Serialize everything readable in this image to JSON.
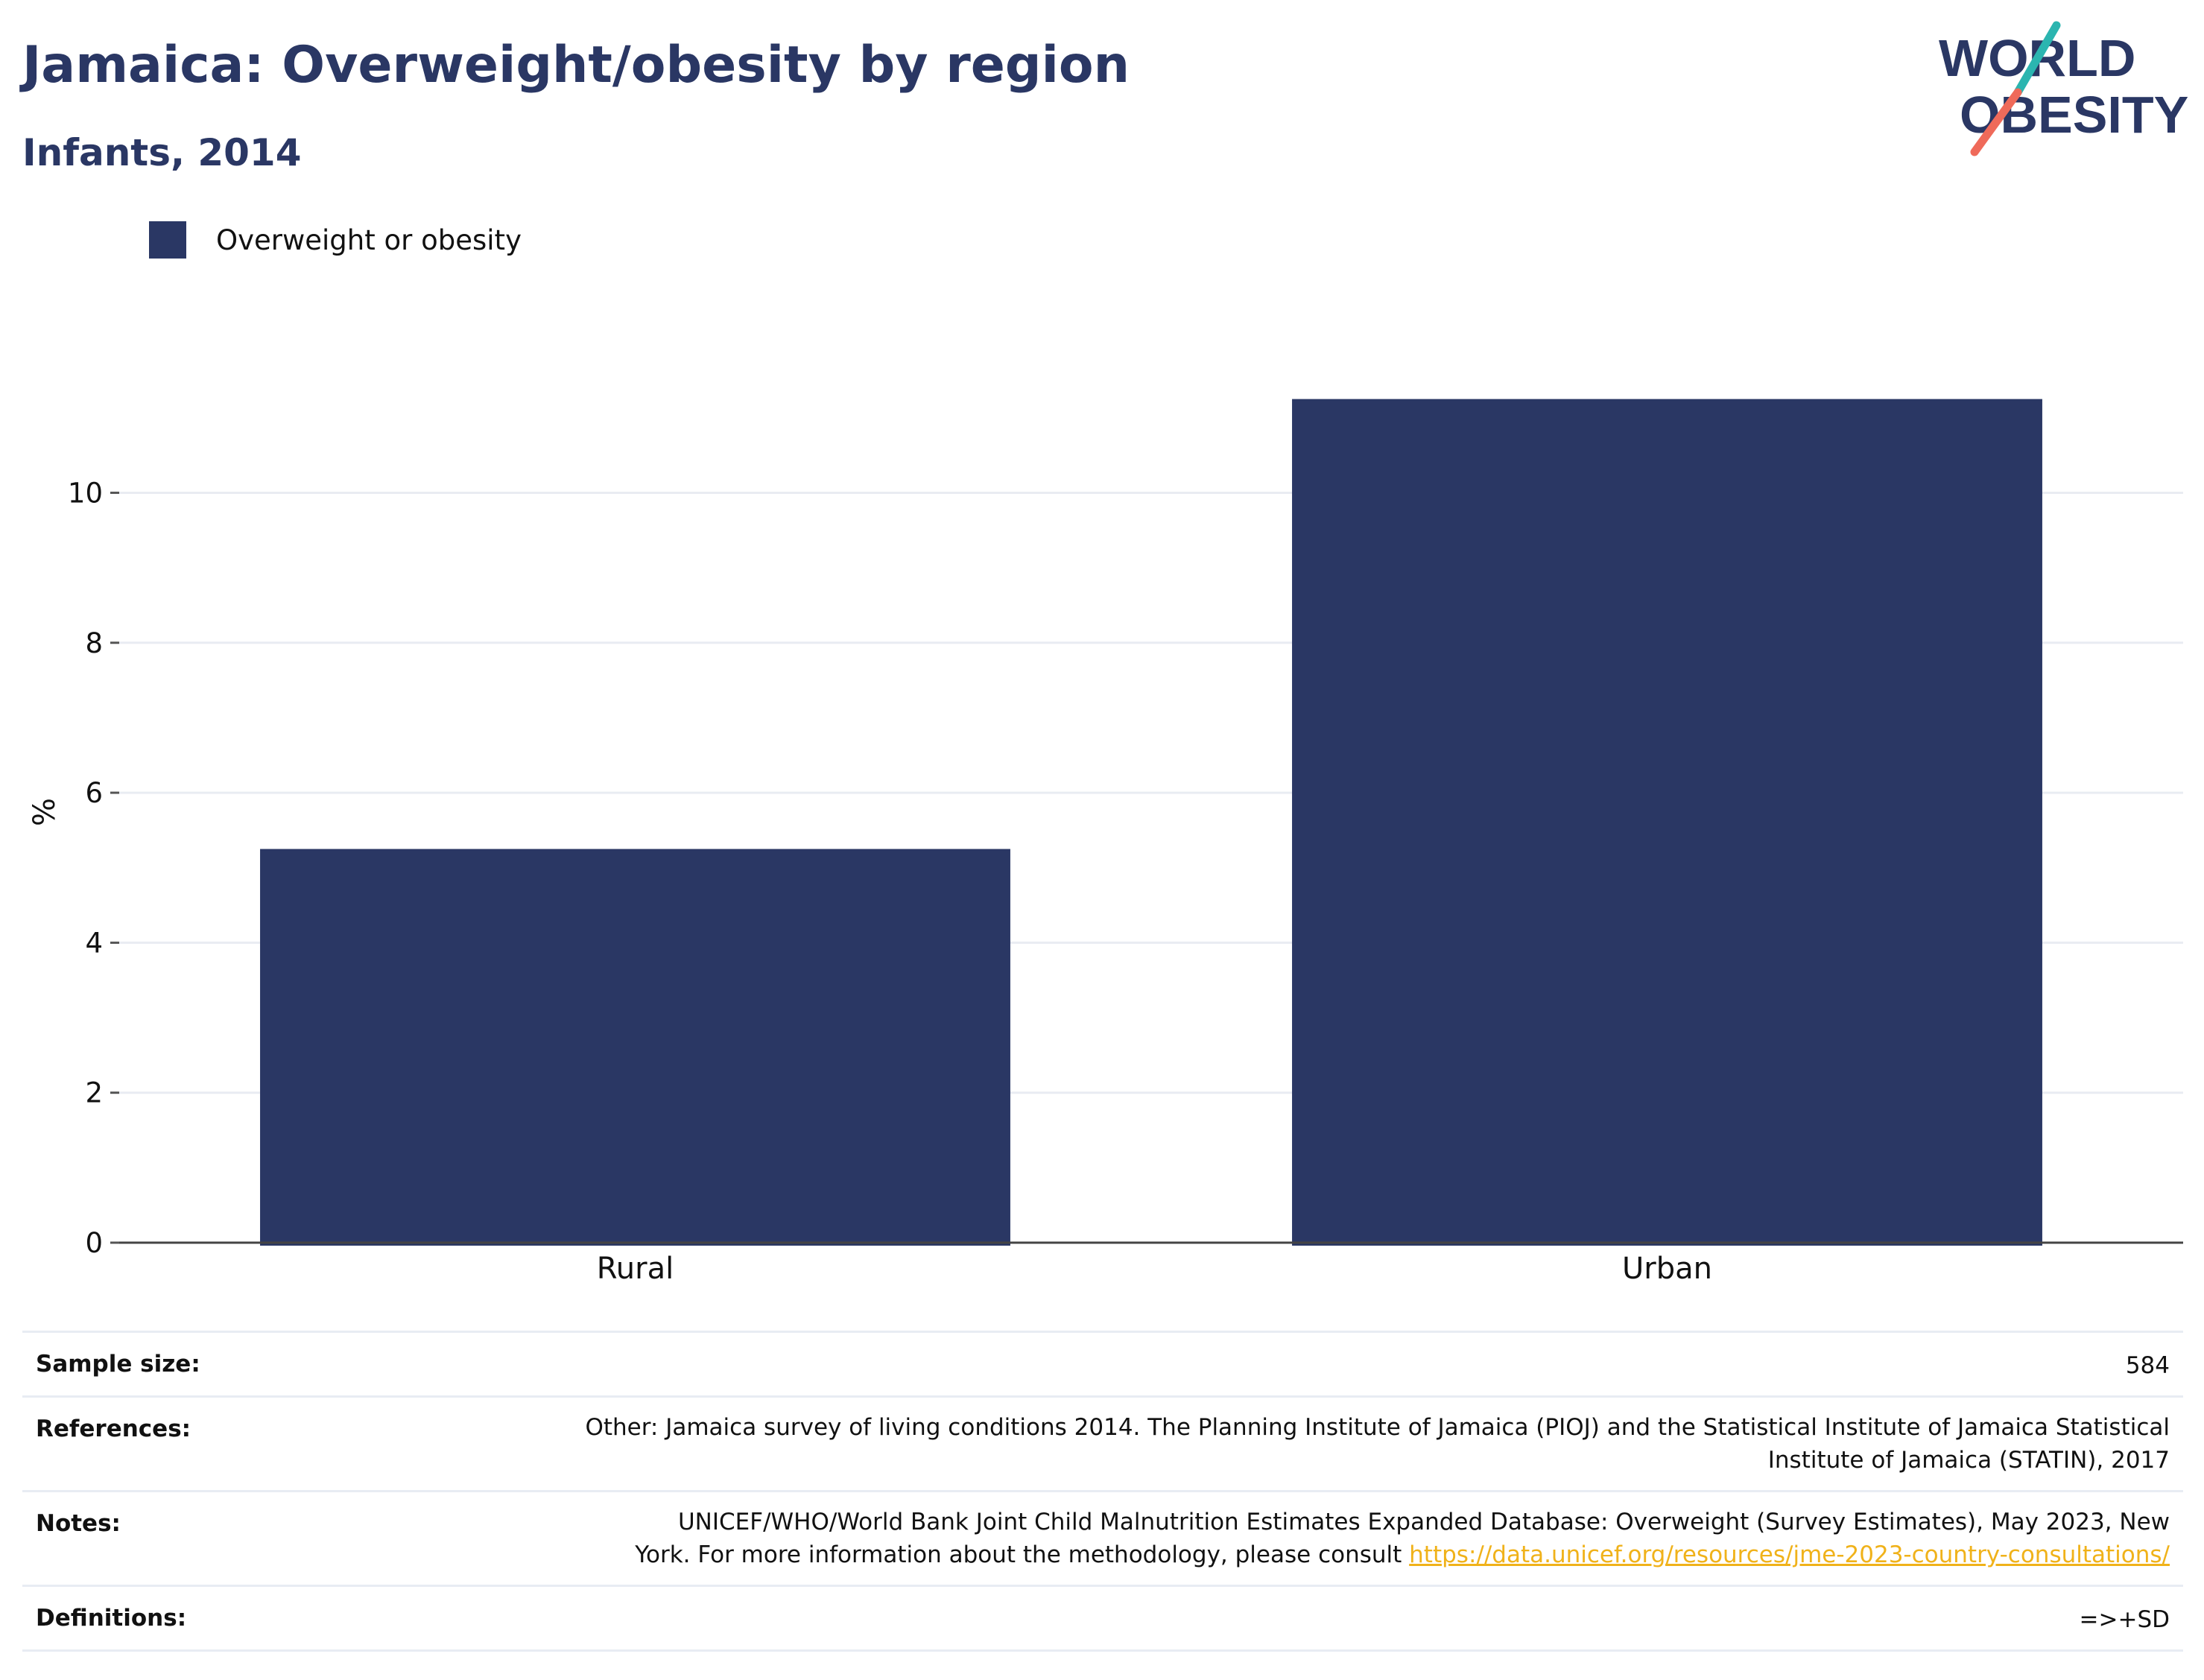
{
  "header": {
    "title": "Jamaica: Overweight/obesity by region",
    "subtitle": "Infants, 2014"
  },
  "logo": {
    "line1": "WORLD",
    "line2": "OBESITY",
    "colors": {
      "text": "#2a3764",
      "accent_teal": "#2bb5b0",
      "accent_coral": "#ef6a5a"
    }
  },
  "chart_data": {
    "type": "bar",
    "title": "Jamaica: Overweight/obesity by region",
    "subtitle": "Infants, 2014",
    "categories": [
      "Rural",
      "Urban"
    ],
    "series": [
      {
        "name": "Overweight or obesity",
        "values": [
          5.25,
          11.25
        ],
        "color": "#2a3764"
      }
    ],
    "ylabel": "%",
    "xlabel": "",
    "ylim": [
      0,
      12.2
    ],
    "yticks": [
      0,
      2,
      4,
      6,
      8,
      10
    ],
    "grid": true,
    "legend": "top-left"
  },
  "info": {
    "rows": [
      {
        "key": "Sample size:",
        "value": "584"
      },
      {
        "key": "References:",
        "value_lines": [
          "Other: Jamaica survey of living conditions 2014. The Planning Institute of Jamaica (PIOJ) and the Statistical Institute of Jamaica Statistical",
          "Institute of Jamaica (STATIN), 2017"
        ]
      },
      {
        "key": "Notes:",
        "value_lines": [
          "UNICEF/WHO/World Bank Joint Child Malnutrition Estimates Expanded Database: Overweight (Survey Estimates), May 2023, New",
          "York. For more information about the methodology, please consult "
        ],
        "link": "https://data.unicef.org/resources/jme-2023-country-consultations/"
      },
      {
        "key": "Definitions:",
        "value": "=>+SD"
      }
    ]
  }
}
